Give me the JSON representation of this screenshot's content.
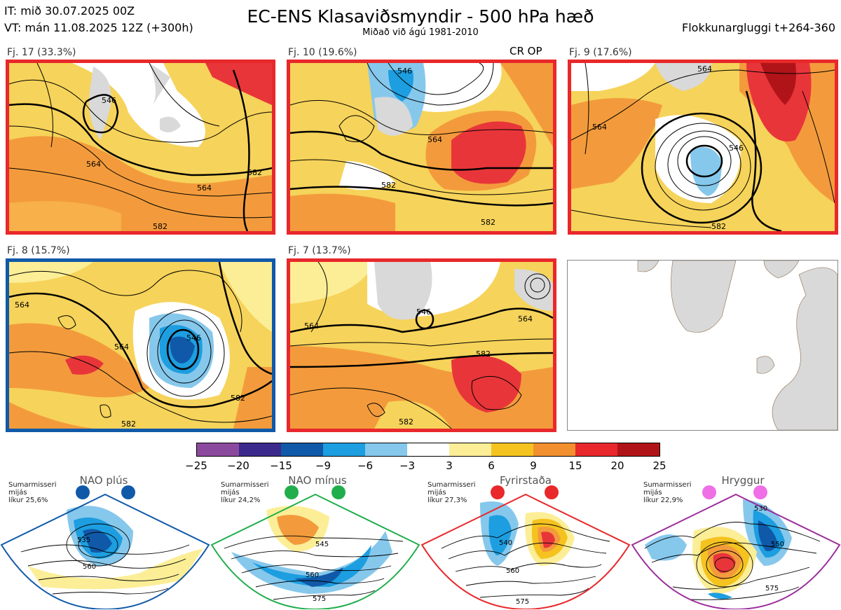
{
  "header": {
    "it_line": "IT: mið 30.07.2025 00Z",
    "vt_line": "VT: mán 11.08.2025 12Z  (+300h)",
    "title": "EC-ENS Klasaviðsmyndir - 500 hPa hæð",
    "subtitle": "Miðað við ágú 1981-2010",
    "window": "Flokkunargluggi t+264-360"
  },
  "panels": [
    {
      "label": "Fj. 17 (33.3%)",
      "border": "#e8282b",
      "contours": [
        "546",
        "564",
        "564",
        "582",
        "582"
      ],
      "tag": ""
    },
    {
      "label": "Fj. 10 (19.6%)",
      "border": "#e8282b",
      "contours": [
        "546",
        "564",
        "582",
        "582"
      ],
      "tag": "CR OP"
    },
    {
      "label": "Fj. 9 (17.6%)",
      "border": "#e8282b",
      "contours": [
        "564",
        "564",
        "546",
        "582"
      ],
      "tag": ""
    },
    {
      "label": "Fj. 8 (15.7%)",
      "border": "#1059a8",
      "contours": [
        "564",
        "564",
        "546",
        "582",
        "582"
      ],
      "tag": ""
    },
    {
      "label": "Fj. 7 (13.7%)",
      "border": "#e8282b",
      "contours": [
        "546",
        "564",
        "564",
        "582",
        "582"
      ],
      "tag": ""
    }
  ],
  "colorbar": {
    "ticks": [
      "−25",
      "−20",
      "−15",
      "−9",
      "−6",
      "−3",
      "3",
      "6",
      "9",
      "15",
      "20",
      "25"
    ],
    "colors": [
      "#8c4a9e",
      "#3b2a8c",
      "#1059a8",
      "#1d9ee0",
      "#86c8ec",
      "#ffffff",
      "#fbee96",
      "#f5c320",
      "#f28f2e",
      "#e8282b",
      "#b01418"
    ]
  },
  "regimes": [
    {
      "name": "NAO plús",
      "note": [
        "Sumarmisseri",
        "mijás",
        "líkur 25,6%"
      ],
      "color": "#1059a8",
      "contours": [
        "535",
        "560"
      ]
    },
    {
      "name": "NAO mínus",
      "note": [
        "Sumarmisseri",
        "mijás",
        "líkur 24,2%"
      ],
      "color": "#1fae4b",
      "contours": [
        "545",
        "560",
        "575"
      ]
    },
    {
      "name": "Fyrirstaða",
      "note": [
        "Sumarmisseri",
        "mijás",
        "líkur 27,3%"
      ],
      "color": "#e8282b",
      "contours": [
        "540",
        "560",
        "575"
      ]
    },
    {
      "name": "Hryggur",
      "note": [
        "Sumarmisseri",
        "mijás",
        "líkur 22,9%"
      ],
      "color": "#9b2d9b",
      "dot_color": "#ef6fe6",
      "contours": [
        "530",
        "550",
        "575"
      ]
    }
  ]
}
